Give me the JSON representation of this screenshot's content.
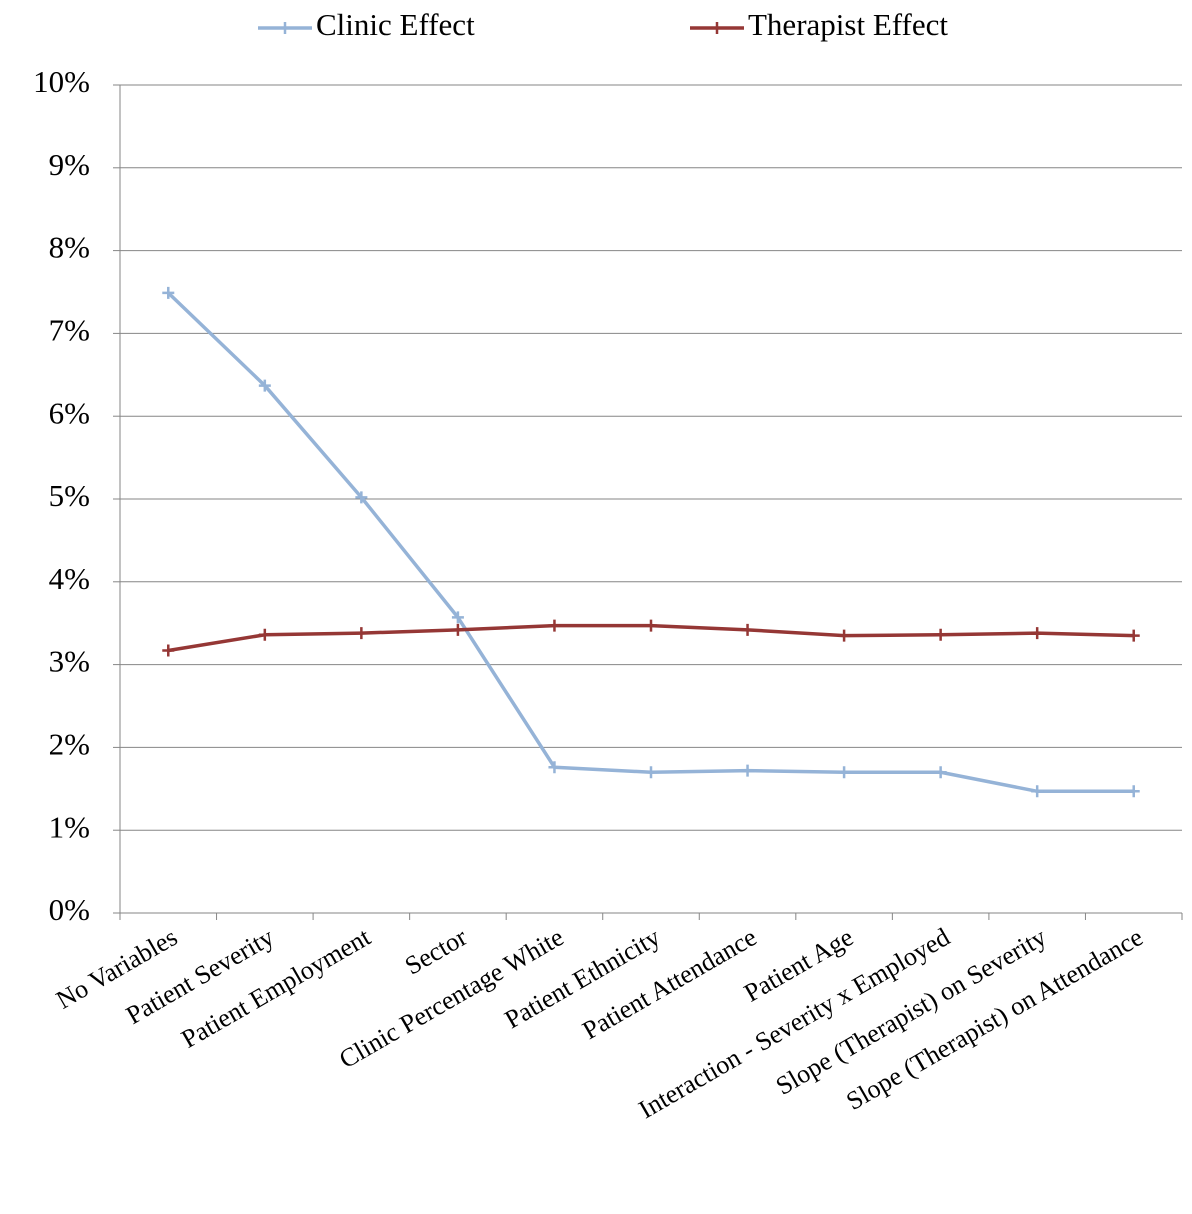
{
  "chart_data": {
    "type": "line",
    "categories": [
      "No Variables",
      "Patient Severity",
      "Patient Employment",
      "Sector",
      "Clinic Percentage White",
      "Patient Ethnicity",
      "Patient Attendance",
      "Patient Age",
      "Interaction - Severity x Employed",
      "Slope (Therapist) on Severity",
      "Slope (Therapist) on Attendance"
    ],
    "series": [
      {
        "name": "Clinic Effect",
        "color": "#95b3d7",
        "values": [
          7.49,
          6.37,
          5.02,
          3.57,
          1.76,
          1.7,
          1.72,
          1.7,
          1.7,
          1.47,
          1.47
        ]
      },
      {
        "name": "Therapist Effect",
        "color": "#953735",
        "values": [
          3.17,
          3.36,
          3.38,
          3.42,
          3.47,
          3.47,
          3.42,
          3.35,
          3.36,
          3.38,
          3.35
        ]
      }
    ],
    "ylim": [
      0,
      10
    ],
    "yticks": [
      {
        "value": 0,
        "label": "0%"
      },
      {
        "value": 1,
        "label": "1%"
      },
      {
        "value": 2,
        "label": "2%"
      },
      {
        "value": 3,
        "label": "3%"
      },
      {
        "value": 4,
        "label": "4%"
      },
      {
        "value": 5,
        "label": "5%"
      },
      {
        "value": 6,
        "label": "6%"
      },
      {
        "value": 7,
        "label": "7%"
      },
      {
        "value": 8,
        "label": "8%"
      },
      {
        "value": 9,
        "label": "9%"
      },
      {
        "value": 10,
        "label": "10%"
      }
    ],
    "grid": true,
    "legend": "top"
  }
}
